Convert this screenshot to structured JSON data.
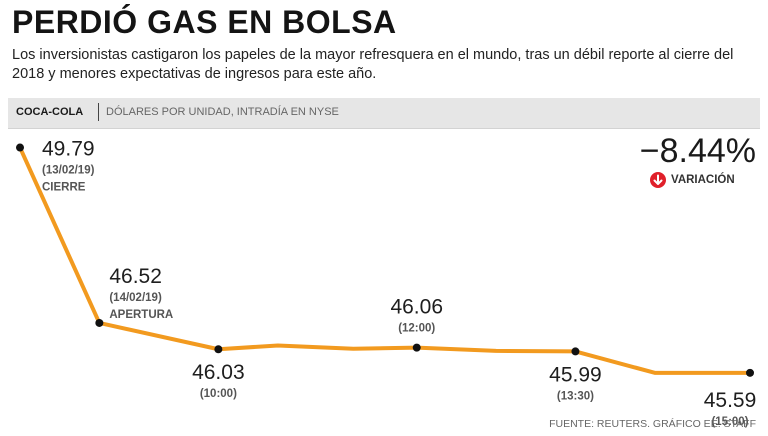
{
  "title": "PERDIÓ GAS EN BOLSA",
  "subtitle": "Los inversionistas castigaron los papeles de la mayor refresquera en el mundo, tras un débil reporte al cierre del 2018 y menores expectativas de ingresos para este año.",
  "header": {
    "series_name": "COCA-COLA",
    "units": "DÓLARES POR UNIDAD, INTRADÍA EN NYSE"
  },
  "change": {
    "value": "−8.44%",
    "label": "VARIACIÓN",
    "direction": "down",
    "color": "#e0202a"
  },
  "source": "FUENTE: REUTERS. GRÁFICO EE: STAFF",
  "chart_data": {
    "type": "line",
    "series_name": "COCA-COLA",
    "ylabel": "Dólares por unidad",
    "line_color": "#f29a1f",
    "ylim": [
      45.4,
      50.0
    ],
    "points": [
      {
        "x": 0,
        "y": 49.79,
        "label": "49.79",
        "sub1": "(13/02/19)",
        "sub2": "CIERRE"
      },
      {
        "x": 1,
        "y": 46.52,
        "label": "46.52",
        "sub1": "(14/02/19)",
        "sub2": "APERTURA"
      },
      {
        "x": 2.5,
        "y": 46.03,
        "label": "46.03",
        "sub1": "(10:00)"
      },
      {
        "x": 3.25,
        "y": 46.1,
        "label": null
      },
      {
        "x": 4.2,
        "y": 46.04,
        "label": null
      },
      {
        "x": 5.0,
        "y": 46.06,
        "label": "46.06",
        "sub1": "(12:00)"
      },
      {
        "x": 6,
        "y": 46.0,
        "label": null
      },
      {
        "x": 7.0,
        "y": 45.99,
        "label": "45.99",
        "sub1": "(13:30)"
      },
      {
        "x": 8,
        "y": 45.59,
        "label": null
      },
      {
        "x": 9.2,
        "y": 45.59,
        "label": "45.59",
        "sub1": "(15:00)"
      }
    ]
  }
}
